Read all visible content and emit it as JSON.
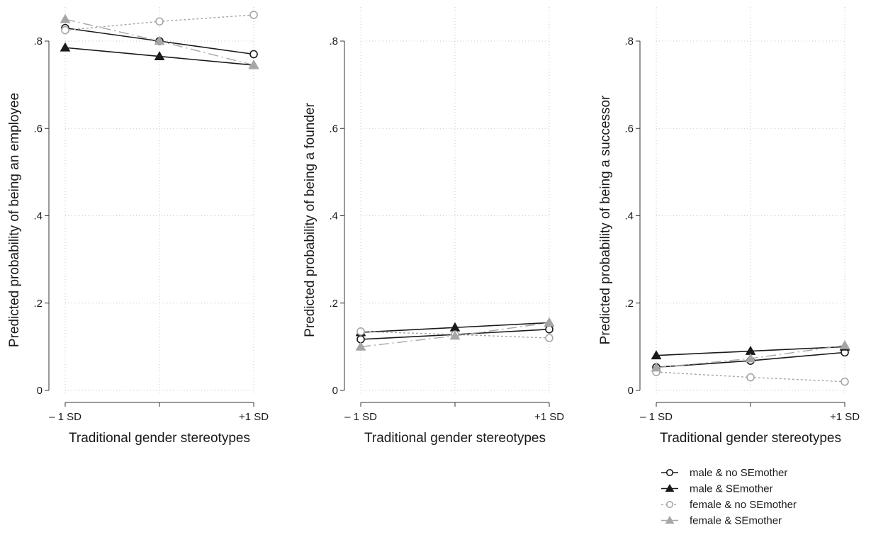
{
  "chart_data": [
    {
      "type": "line",
      "ylabel": "Predicted probability of being an employee",
      "xlabel": "Traditional gender stereotypes",
      "x_positions": [
        -1,
        0,
        1
      ],
      "x_tick_labels": [
        {
          "x": -1,
          "label": "– 1 SD"
        },
        {
          "x": 1,
          "label": "+1 SD"
        }
      ],
      "ylim": [
        0,
        0.8
      ],
      "y_ticks": [
        {
          "value": 0,
          "label": "0"
        },
        {
          "value": 0.2,
          "label": ".2"
        },
        {
          "value": 0.4,
          "label": ".4"
        },
        {
          "value": 0.6,
          "label": ".6"
        },
        {
          "value": 0.8,
          "label": ".8"
        }
      ],
      "grid": true,
      "series": [
        {
          "name": "male & no SEmother",
          "values": [
            0.83,
            0.8,
            0.77
          ]
        },
        {
          "name": "male &  SEmother",
          "values": [
            0.785,
            0.765,
            0.745
          ]
        },
        {
          "name": "female & no SEmother",
          "values": [
            0.825,
            0.845,
            0.86
          ]
        },
        {
          "name": "female & SEmother",
          "values": [
            0.85,
            0.8,
            0.745
          ]
        }
      ]
    },
    {
      "type": "line",
      "ylabel": "Predicted probability of being a founder",
      "xlabel": "Traditional gender stereotypes",
      "x_positions": [
        -1,
        0,
        1
      ],
      "x_tick_labels": [
        {
          "x": -1,
          "label": "– 1 SD"
        },
        {
          "x": 1,
          "label": "+1 SD"
        }
      ],
      "ylim": [
        0,
        0.8
      ],
      "y_ticks": [
        {
          "value": 0,
          "label": "0"
        },
        {
          "value": 0.2,
          "label": ".2"
        },
        {
          "value": 0.4,
          "label": ".4"
        },
        {
          "value": 0.6,
          "label": ".6"
        },
        {
          "value": 0.8,
          "label": ".8"
        }
      ],
      "grid": true,
      "series": [
        {
          "name": "male & no SEmother",
          "values": [
            0.117,
            0.128,
            0.14
          ]
        },
        {
          "name": "male &  SEmother",
          "values": [
            0.133,
            0.144,
            0.155
          ]
        },
        {
          "name": "female & no SEmother",
          "values": [
            0.135,
            0.128,
            0.12
          ]
        },
        {
          "name": "female & SEmother",
          "values": [
            0.1,
            0.125,
            0.155
          ]
        }
      ]
    },
    {
      "type": "line",
      "ylabel": "Predicted probability of being a successor",
      "xlabel": "Traditional gender stereotypes",
      "x_positions": [
        -1,
        0,
        1
      ],
      "x_tick_labels": [
        {
          "x": -1,
          "label": "– 1 SD"
        },
        {
          "x": 1,
          "label": "+1 SD"
        }
      ],
      "ylim": [
        0,
        0.8
      ],
      "y_ticks": [
        {
          "value": 0,
          "label": "0"
        },
        {
          "value": 0.2,
          "label": ".2"
        },
        {
          "value": 0.4,
          "label": ".4"
        },
        {
          "value": 0.6,
          "label": ".6"
        },
        {
          "value": 0.8,
          "label": ".8"
        }
      ],
      "grid": true,
      "series": [
        {
          "name": "male & no SEmother",
          "values": [
            0.053,
            0.068,
            0.087
          ]
        },
        {
          "name": "male &  SEmother",
          "values": [
            0.08,
            0.09,
            0.1
          ]
        },
        {
          "name": "female & no SEmother",
          "values": [
            0.042,
            0.03,
            0.02
          ]
        },
        {
          "name": "female & SEmother",
          "values": [
            0.052,
            0.073,
            0.103
          ]
        }
      ]
    }
  ],
  "legend": {
    "placement": "bottom-right",
    "items": [
      {
        "label": "male & no SEmother",
        "color": "#1a1a1a",
        "marker": "circle-hollow",
        "dash": "solid"
      },
      {
        "label": "male &  SEmother",
        "color": "#1a1a1a",
        "marker": "triangle-filled",
        "dash": "solid"
      },
      {
        "label": "female & no SEmother",
        "color": "#a6a6a6",
        "marker": "circle-hollow",
        "dash": "short-dash"
      },
      {
        "label": "female & SEmother",
        "color": "#a6a6a6",
        "marker": "triangle-filled",
        "dash": "long-dash-dot"
      }
    ]
  },
  "colors": {
    "black_series": "#1a1a1a",
    "gray_series": "#a6a6a6",
    "grid": "#c8c8c8",
    "axis": "#333333"
  }
}
